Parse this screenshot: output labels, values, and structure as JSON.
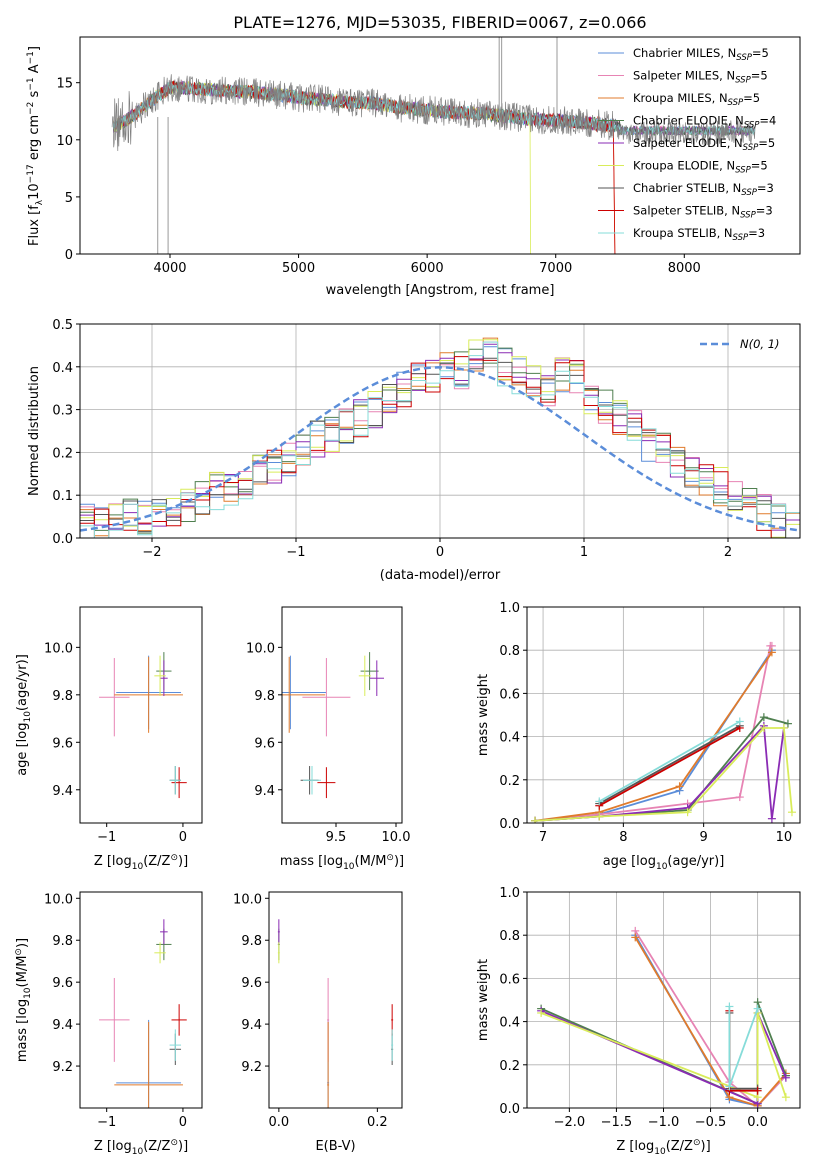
{
  "title": "PLATE=1276, MJD=53035, FIBERID=0067, z=0.066",
  "colors": {
    "Chabrier MILES": "#5b8dd9",
    "Salpeter MILES": "#e784b4",
    "Kroupa MILES": "#e07b2c",
    "Chabrier ELODIE": "#4f7f4f",
    "Salpeter ELODIE": "#8a2bb4",
    "Kroupa ELODIE": "#d9ec5a",
    "Chabrier STELIB": "#555555",
    "Salpeter STELIB": "#cc0000",
    "Kroupa STELIB": "#86dcd9",
    "data": "#808080",
    "gaussian": "#5b8dd9",
    "grid": "#b0b0b0"
  },
  "legend": [
    {
      "name": "Chabrier MILES",
      "nssp": "5"
    },
    {
      "name": "Salpeter MILES",
      "nssp": "5"
    },
    {
      "name": "Kroupa MILES",
      "nssp": "5"
    },
    {
      "name": "Chabrier ELODIE",
      "nssp": "4"
    },
    {
      "name": "Salpeter ELODIE",
      "nssp": "5"
    },
    {
      "name": "Kroupa ELODIE",
      "nssp": "5"
    },
    {
      "name": "Chabrier STELIB",
      "nssp": "3"
    },
    {
      "name": "Salpeter STELIB",
      "nssp": "3"
    },
    {
      "name": "Kroupa STELIB",
      "nssp": "3"
    }
  ],
  "legend_fmt": {
    "prefix": ", N",
    "sub": "SSP",
    "suffix": "="
  },
  "chart_data": [
    {
      "id": "spectrum",
      "type": "line",
      "xlabel": "wavelength [Angstrom, rest frame]",
      "ylabel_parts": [
        "Flux [f",
        "λ",
        "10",
        "−17",
        " erg cm",
        "−2",
        " s",
        "−1",
        " A",
        "−1",
        "]"
      ],
      "xlim": [
        3300,
        8900
      ],
      "ylim": [
        0,
        19
      ],
      "xticks": [
        4000,
        5000,
        6000,
        7000,
        8000
      ],
      "yticks": [
        0,
        5,
        10,
        15
      ],
      "note": "observed spectrum with nine model fits, flux ~11-16 over 3550-8550 Angstrom",
      "continuum": [
        [
          3550,
          11.0
        ],
        [
          3700,
          12.0
        ],
        [
          3900,
          13.8
        ],
        [
          4000,
          14.6
        ],
        [
          4200,
          14.5
        ],
        [
          4400,
          14.3
        ],
        [
          4600,
          14.2
        ],
        [
          4800,
          14.0
        ],
        [
          5000,
          13.7
        ],
        [
          5200,
          13.5
        ],
        [
          5400,
          13.3
        ],
        [
          5600,
          13.2
        ],
        [
          5800,
          12.8
        ],
        [
          6000,
          12.6
        ],
        [
          6200,
          12.4
        ],
        [
          6400,
          12.3
        ],
        [
          6600,
          12.1
        ],
        [
          6800,
          11.8
        ],
        [
          7000,
          11.7
        ],
        [
          7200,
          11.5
        ],
        [
          7400,
          11.3
        ],
        [
          7500,
          11.2
        ]
      ],
      "data_extent": [
        3550,
        8550
      ]
    },
    {
      "id": "residuals",
      "type": "histogram",
      "xlabel": "(data-model)/error",
      "ylabel": "Normed distribution",
      "xlim": [
        -2.5,
        2.5
      ],
      "ylim": [
        0,
        0.5
      ],
      "xticks": [
        -2,
        -1,
        0,
        1,
        2
      ],
      "yticks": [
        0.0,
        0.1,
        0.2,
        0.3,
        0.4,
        0.5
      ],
      "gaussian_label": "N(0, 1)",
      "bin_edges_start": -2.5,
      "bin_width": 0.1,
      "series_values": [
        0.04,
        0.03,
        0.05,
        0.06,
        0.05,
        0.07,
        0.06,
        0.08,
        0.09,
        0.11,
        0.12,
        0.13,
        0.15,
        0.17,
        0.19,
        0.21,
        0.23,
        0.24,
        0.26,
        0.28,
        0.3,
        0.33,
        0.35,
        0.37,
        0.38,
        0.4,
        0.39,
        0.42,
        0.43,
        0.4,
        0.38,
        0.36,
        0.35,
        0.38,
        0.37,
        0.33,
        0.31,
        0.28,
        0.26,
        0.22,
        0.2,
        0.17,
        0.15,
        0.13,
        0.12,
        0.09,
        0.08,
        0.06,
        0.04,
        0.03
      ]
    },
    {
      "id": "age-vs-Z",
      "type": "scatter",
      "xlabel_parts": [
        "Z [log",
        "10",
        "(Z/Z",
        "⊙",
        ")]"
      ],
      "ylabel_parts": [
        "age  [log",
        "10",
        "(age/yr)]"
      ],
      "xlim": [
        -1.35,
        0.25
      ],
      "ylim": [
        9.26,
        10.17
      ],
      "xticks": [
        -1,
        0
      ],
      "yticks": [
        9.4,
        9.6,
        9.8,
        10.0
      ]
    },
    {
      "id": "age-vs-mass",
      "type": "scatter",
      "xlabel_parts": [
        "mass [log",
        "10",
        "(M/M",
        "⊙",
        ")]"
      ],
      "xlim": [
        9.05,
        10.05
      ],
      "ylim": [
        9.26,
        10.17
      ],
      "xticks": [
        9.5,
        10.0
      ],
      "yticks": [
        9.4,
        9.6,
        9.8,
        10.0
      ]
    },
    {
      "id": "massweight-vs-age",
      "type": "line",
      "xlabel_parts": [
        "age  [log",
        "10",
        "(age/yr)]"
      ],
      "ylabel": "mass weight",
      "xlim": [
        6.8,
        10.2
      ],
      "ylim": [
        0.0,
        1.0
      ],
      "xticks": [
        7,
        8,
        9,
        10
      ],
      "yticks": [
        0.0,
        0.2,
        0.4,
        0.6,
        0.8,
        1.0
      ],
      "series": [
        {
          "name": "Chabrier MILES",
          "x": [
            6.9,
            7.7,
            8.7,
            9.85
          ],
          "y": [
            0.01,
            0.04,
            0.15,
            0.8
          ]
        },
        {
          "name": "Salpeter MILES",
          "x": [
            6.9,
            7.7,
            8.8,
            9.45,
            9.83,
            9.85
          ],
          "y": [
            0.01,
            0.04,
            0.09,
            0.12,
            0.82,
            0.82
          ]
        },
        {
          "name": "Kroupa MILES",
          "x": [
            6.9,
            7.7,
            8.7,
            9.85
          ],
          "y": [
            0.01,
            0.05,
            0.17,
            0.79
          ]
        },
        {
          "name": "Chabrier ELODIE",
          "x": [
            6.9,
            7.7,
            8.8,
            9.75,
            10.05
          ],
          "y": [
            0.01,
            0.03,
            0.06,
            0.49,
            0.46
          ]
        },
        {
          "name": "Salpeter ELODIE",
          "x": [
            6.9,
            7.7,
            8.8,
            9.75,
            9.85,
            10.0
          ],
          "y": [
            0.01,
            0.03,
            0.07,
            0.45,
            0.02,
            0.44
          ]
        },
        {
          "name": "Kroupa ELODIE",
          "x": [
            6.9,
            7.7,
            8.8,
            9.75,
            10.0,
            10.1
          ],
          "y": [
            0.01,
            0.03,
            0.05,
            0.44,
            0.44,
            0.05
          ]
        },
        {
          "name": "Chabrier STELIB",
          "x": [
            7.7,
            9.45
          ],
          "y": [
            0.09,
            0.45
          ]
        },
        {
          "name": "Salpeter STELIB",
          "x": [
            7.7,
            9.45
          ],
          "y": [
            0.08,
            0.44
          ]
        },
        {
          "name": "Kroupa STELIB",
          "x": [
            7.7,
            9.45
          ],
          "y": [
            0.1,
            0.47
          ]
        }
      ]
    },
    {
      "id": "mass-vs-Z",
      "type": "scatter",
      "xlabel_parts": [
        "Z [log",
        "10",
        "(Z/Z",
        "⊙",
        ")]"
      ],
      "ylabel_parts": [
        "mass [log",
        "10",
        "(M/M",
        "⊙",
        ")]"
      ],
      "xlim": [
        -1.35,
        0.25
      ],
      "ylim": [
        9.0,
        10.03
      ],
      "xticks": [
        -1,
        0
      ],
      "yticks": [
        9.2,
        9.4,
        9.6,
        9.8,
        10.0
      ]
    },
    {
      "id": "mass-vs-EBV",
      "type": "scatter",
      "xlabel": "E(B-V)",
      "xlim": [
        -0.02,
        0.25
      ],
      "ylim": [
        9.0,
        10.03
      ],
      "xticks": [
        0.0,
        0.2
      ],
      "yticks": [
        9.2,
        9.4,
        9.6,
        9.8,
        10.0
      ]
    },
    {
      "id": "massweight-vs-Z",
      "type": "line",
      "xlabel_parts": [
        "Z [log",
        "10",
        "(Z/Z",
        "⊙",
        ")]"
      ],
      "ylabel": "mass weight",
      "xlim": [
        -2.45,
        0.45
      ],
      "ylim": [
        0.0,
        1.0
      ],
      "xticks": [
        -2.0,
        -1.5,
        -1.0,
        -0.5,
        0.0
      ],
      "yticks": [
        0.0,
        0.2,
        0.4,
        0.6,
        0.8,
        1.0
      ],
      "series": [
        {
          "name": "Chabrier MILES",
          "x": [
            -1.3,
            -0.3,
            0.0,
            0.3
          ],
          "y": [
            0.8,
            0.04,
            0.01,
            0.15
          ]
        },
        {
          "name": "Salpeter MILES",
          "x": [
            -1.3,
            -0.3,
            0.0,
            0.3
          ],
          "y": [
            0.82,
            0.12,
            0.01,
            0.15
          ]
        },
        {
          "name": "Kroupa MILES",
          "x": [
            -1.3,
            -0.3,
            0.0,
            0.3
          ],
          "y": [
            0.79,
            0.05,
            0.01,
            0.16
          ]
        },
        {
          "name": "Chabrier ELODIE",
          "x": [
            -2.3,
            0.0,
            0.0,
            0.3
          ],
          "y": [
            0.46,
            0.02,
            0.49,
            0.15
          ]
        },
        {
          "name": "Salpeter ELODIE",
          "x": [
            -2.3,
            0.0,
            0.0,
            0.3
          ],
          "y": [
            0.45,
            0.02,
            0.44,
            0.14
          ]
        },
        {
          "name": "Kroupa ELODIE",
          "x": [
            -2.3,
            0.0,
            0.0,
            0.3
          ],
          "y": [
            0.44,
            0.05,
            0.44,
            0.05
          ]
        },
        {
          "name": "Chabrier STELIB",
          "x": [
            -0.3,
            -0.3,
            0.0
          ],
          "y": [
            0.44,
            0.09,
            0.09
          ]
        },
        {
          "name": "Salpeter STELIB",
          "x": [
            -0.3,
            -0.3,
            0.0
          ],
          "y": [
            0.45,
            0.08,
            0.08
          ]
        },
        {
          "name": "Kroupa STELIB",
          "x": [
            -0.3,
            -0.3,
            0.0
          ],
          "y": [
            0.47,
            0.1,
            0.46
          ]
        }
      ]
    }
  ],
  "ssp_points": [
    {
      "name": "Chabrier MILES",
      "Z": -0.45,
      "Zerr": 0.85,
      "age": 9.81,
      "ageerr": 0.31,
      "mass": 9.12,
      "masserr": 0.6,
      "ebv": 0.1
    },
    {
      "name": "Salpeter MILES",
      "Z": -0.9,
      "Zerr": 0.4,
      "age": 9.79,
      "ageerr": 0.33,
      "mass": 9.42,
      "masserr": 0.4,
      "ebv": 0.1
    },
    {
      "name": "Kroupa MILES",
      "Z": -0.45,
      "Zerr": 0.9,
      "age": 9.8,
      "ageerr": 0.32,
      "mass": 9.11,
      "masserr": 0.6,
      "ebv": 0.1
    },
    {
      "name": "Chabrier ELODIE",
      "Z": -0.25,
      "Zerr": 0.2,
      "age": 9.9,
      "ageerr": 0.16,
      "mass": 9.78,
      "masserr": 0.15,
      "ebv": 0.0
    },
    {
      "name": "Salpeter ELODIE",
      "Z": -0.25,
      "Zerr": 0.1,
      "age": 9.87,
      "ageerr": 0.15,
      "mass": 9.84,
      "masserr": 0.12,
      "ebv": 0.0
    },
    {
      "name": "Kroupa ELODIE",
      "Z": -0.3,
      "Zerr": 0.15,
      "age": 9.88,
      "ageerr": 0.17,
      "mass": 9.74,
      "masserr": 0.1,
      "ebv": 0.0
    },
    {
      "name": "Chabrier STELIB",
      "Z": -0.1,
      "Zerr": 0.15,
      "age": 9.44,
      "ageerr": 0.12,
      "mass": 9.28,
      "masserr": 0.15,
      "ebv": 0.23
    },
    {
      "name": "Salpeter STELIB",
      "Z": -0.05,
      "Zerr": 0.2,
      "age": 9.43,
      "ageerr": 0.13,
      "mass": 9.42,
      "masserr": 0.15,
      "ebv": 0.23
    },
    {
      "name": "Kroupa STELIB",
      "Z": -0.1,
      "Zerr": 0.15,
      "age": 9.44,
      "ageerr": 0.12,
      "mass": 9.3,
      "masserr": 0.15,
      "ebv": 0.23
    }
  ]
}
